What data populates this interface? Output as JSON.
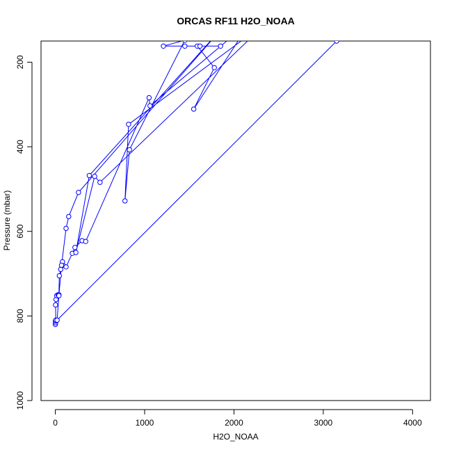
{
  "chart_data": {
    "type": "line",
    "title": "ORCAS RF11 H2O_NOAA",
    "xlabel": "H2O_NOAA",
    "ylabel": "Pressure (mbar)",
    "xlim": [
      -160,
      4200
    ],
    "ylim": [
      1000,
      150
    ],
    "y_reversed": true,
    "x_ticks": [
      0,
      1000,
      2000,
      3000,
      4000
    ],
    "y_ticks": [
      200,
      400,
      600,
      800,
      1000
    ],
    "grid": false,
    "legend": "none",
    "series": [
      {
        "color": "#0000ff",
        "marker": "open-circle",
        "points": [
          {
            "x": 0,
            "y": 820
          },
          {
            "x": 2,
            "y": 816
          },
          {
            "x": 1,
            "y": 812
          },
          {
            "x": 5,
            "y": 810
          },
          {
            "x": 3,
            "y": 774
          },
          {
            "x": 8,
            "y": 761
          },
          {
            "x": 15,
            "y": 752
          },
          {
            "x": 30,
            "y": 750
          },
          {
            "x": 40,
            "y": 750
          },
          {
            "x": 45,
            "y": 705
          },
          {
            "x": 60,
            "y": 690
          },
          {
            "x": 85,
            "y": 680
          },
          {
            "x": 80,
            "y": 672
          },
          {
            "x": 120,
            "y": 684
          },
          {
            "x": 190,
            "y": 652
          },
          {
            "x": 220,
            "y": 638
          },
          {
            "x": 300,
            "y": 622
          },
          {
            "x": 340,
            "y": 624
          },
          {
            "x": 1050,
            "y": 284
          },
          {
            "x": 1060,
            "y": 303
          },
          {
            "x": 2200,
            "y": 100
          },
          {
            "x": 1550,
            "y": 311
          },
          {
            "x": 1780,
            "y": 213
          },
          {
            "x": 1590,
            "y": 162
          },
          {
            "x": 1620,
            "y": 162
          },
          {
            "x": 1850,
            "y": 162
          },
          {
            "x": 1450,
            "y": 162
          },
          {
            "x": 1210,
            "y": 162
          },
          {
            "x": 1450,
            "y": 148
          },
          {
            "x": 830,
            "y": 407
          },
          {
            "x": 780,
            "y": 528
          },
          {
            "x": 820,
            "y": 347
          },
          {
            "x": 2400,
            "y": 100
          },
          {
            "x": 500,
            "y": 484
          },
          {
            "x": 440,
            "y": 470
          },
          {
            "x": 230,
            "y": 650
          },
          {
            "x": 380,
            "y": 468
          },
          {
            "x": 1950,
            "y": 100
          },
          {
            "x": 260,
            "y": 508
          },
          {
            "x": 150,
            "y": 565
          },
          {
            "x": 120,
            "y": 593
          },
          {
            "x": 70,
            "y": 680
          },
          {
            "x": 40,
            "y": 752
          },
          {
            "x": 20,
            "y": 810
          },
          {
            "x": 3150,
            "y": 150
          }
        ]
      }
    ]
  }
}
